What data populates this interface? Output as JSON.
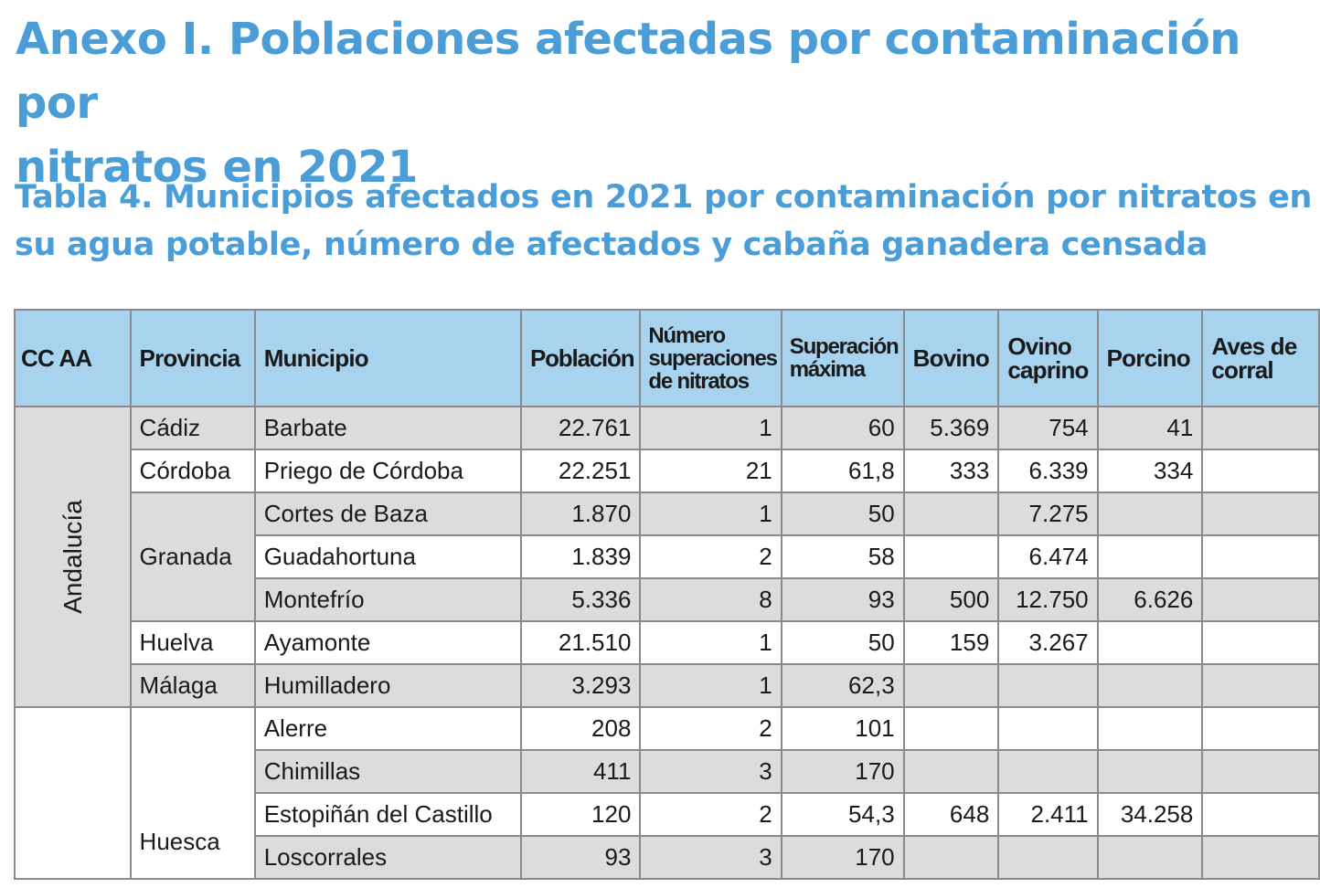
{
  "heading": {
    "line1": "Anexo I. Poblaciones afectadas por contaminación por",
    "line2": "nitratos en 2021"
  },
  "table_title": {
    "line1": "Tabla 4. Municipios afectados en 2021 por contaminación por nitratos en",
    "line2": "su agua potable, número de afectados y cabaña ganadera censada"
  },
  "columns": {
    "ccaa": "CC AA",
    "provincia": "Provincia",
    "municipio": "Municipio",
    "poblacion": "Población",
    "superaciones": [
      "Número",
      "superaciones",
      "de nitratos"
    ],
    "superacion_max": [
      "Superación",
      "máxima"
    ],
    "bovino": "Bovino",
    "ovino": [
      "Ovino",
      "caprino"
    ],
    "porcino": "Porcino",
    "aves": [
      "Aves de",
      "corral"
    ]
  },
  "regions": {
    "andalucia": "Andalucía"
  },
  "provinces": {
    "cadiz": "Cádiz",
    "cordoba": "Córdoba",
    "granada": "Granada",
    "huelva": "Huelva",
    "malaga": "Málaga",
    "huesca": "Huesca"
  },
  "rows": [
    {
      "municipio": "Barbate",
      "poblacion": "22.761",
      "superaciones": "1",
      "max": "60",
      "bovino": "5.369",
      "ovino": "754",
      "porcino": "41",
      "aves": ""
    },
    {
      "municipio": "Priego de Córdoba",
      "poblacion": "22.251",
      "superaciones": "21",
      "max": "61,8",
      "bovino": "333",
      "ovino": "6.339",
      "porcino": "334",
      "aves": ""
    },
    {
      "municipio": "Cortes de Baza",
      "poblacion": "1.870",
      "superaciones": "1",
      "max": "50",
      "bovino": "",
      "ovino": "7.275",
      "porcino": "",
      "aves": ""
    },
    {
      "municipio": "Guadahortuna",
      "poblacion": "1.839",
      "superaciones": "2",
      "max": "58",
      "bovino": "",
      "ovino": "6.474",
      "porcino": "",
      "aves": ""
    },
    {
      "municipio": "Montefrío",
      "poblacion": "5.336",
      "superaciones": "8",
      "max": "93",
      "bovino": "500",
      "ovino": "12.750",
      "porcino": "6.626",
      "aves": ""
    },
    {
      "municipio": "Ayamonte",
      "poblacion": "21.510",
      "superaciones": "1",
      "max": "50",
      "bovino": "159",
      "ovino": "3.267",
      "porcino": "",
      "aves": ""
    },
    {
      "municipio": "Humilladero",
      "poblacion": "3.293",
      "superaciones": "1",
      "max": "62,3",
      "bovino": "",
      "ovino": "",
      "porcino": "",
      "aves": ""
    },
    {
      "municipio": "Alerre",
      "poblacion": "208",
      "superaciones": "2",
      "max": "101",
      "bovino": "",
      "ovino": "",
      "porcino": "",
      "aves": ""
    },
    {
      "municipio": "Chimillas",
      "poblacion": "411",
      "superaciones": "3",
      "max": "170",
      "bovino": "",
      "ovino": "",
      "porcino": "",
      "aves": ""
    },
    {
      "municipio": "Estopiñán del Castillo",
      "poblacion": "120",
      "superaciones": "2",
      "max": "54,3",
      "bovino": "648",
      "ovino": "2.411",
      "porcino": "34.258",
      "aves": ""
    },
    {
      "municipio": "Loscorrales",
      "poblacion": "93",
      "superaciones": "3",
      "max": "170",
      "bovino": "",
      "ovino": "",
      "porcino": "",
      "aves": ""
    }
  ]
}
